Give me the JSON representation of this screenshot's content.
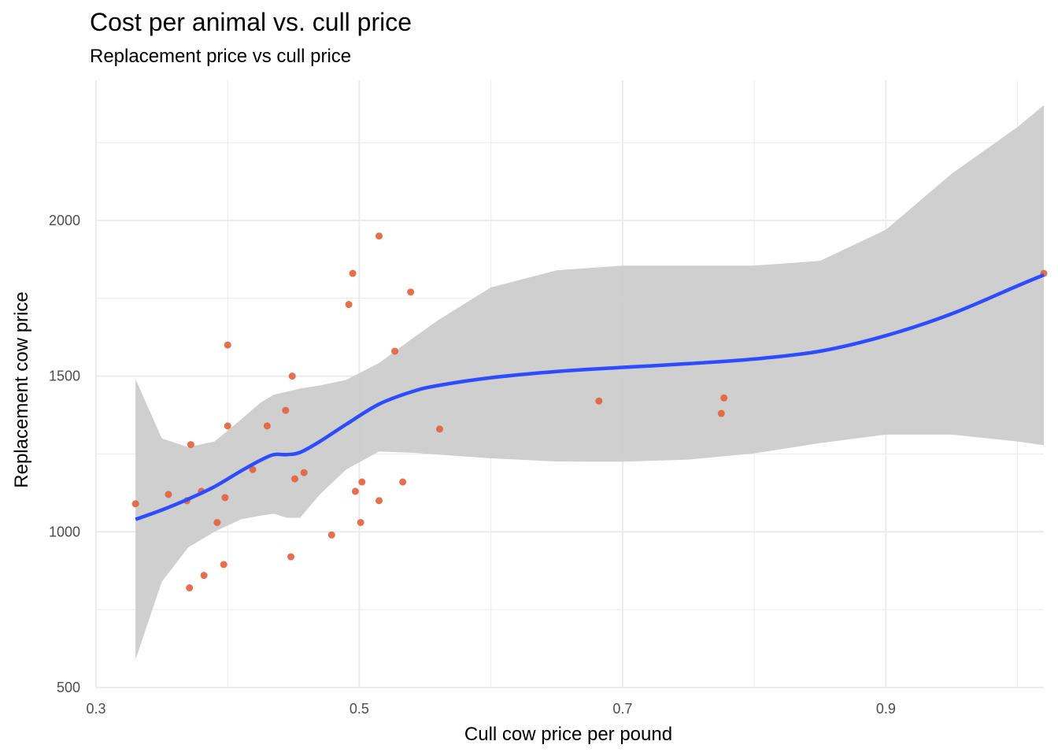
{
  "chart_data": {
    "type": "scatter",
    "title": "Cost per animal vs. cull price",
    "subtitle": "Replacement price vs cull price",
    "xlabel": "Cull cow price per pound",
    "ylabel": "Replacement cow price",
    "xlim": [
      0.3,
      1.02
    ],
    "ylim": [
      500,
      2450
    ],
    "x_ticks": [
      0.3,
      0.5,
      0.7,
      0.9
    ],
    "x_tick_labels": [
      "0.3",
      "0.5",
      "0.7",
      "0.9"
    ],
    "y_ticks": [
      500,
      1000,
      1500,
      2000
    ],
    "y_tick_labels": [
      "500",
      "1000",
      "1500",
      "2000"
    ],
    "grid": true,
    "legend": "none",
    "colors": {
      "points": "#e3633f",
      "smooth_line": "#2d4bff",
      "ribbon": "#cccccc",
      "grid": "#ebebeb"
    },
    "points": [
      {
        "x": 0.33,
        "y": 1090
      },
      {
        "x": 0.355,
        "y": 1120
      },
      {
        "x": 0.369,
        "y": 1100
      },
      {
        "x": 0.371,
        "y": 820
      },
      {
        "x": 0.372,
        "y": 1280
      },
      {
        "x": 0.38,
        "y": 1130
      },
      {
        "x": 0.382,
        "y": 860
      },
      {
        "x": 0.392,
        "y": 1030
      },
      {
        "x": 0.397,
        "y": 895
      },
      {
        "x": 0.398,
        "y": 1110
      },
      {
        "x": 0.4,
        "y": 1600
      },
      {
        "x": 0.4,
        "y": 1340
      },
      {
        "x": 0.419,
        "y": 1200
      },
      {
        "x": 0.43,
        "y": 1340
      },
      {
        "x": 0.444,
        "y": 1390
      },
      {
        "x": 0.448,
        "y": 920
      },
      {
        "x": 0.449,
        "y": 1500
      },
      {
        "x": 0.451,
        "y": 1170
      },
      {
        "x": 0.458,
        "y": 1190
      },
      {
        "x": 0.479,
        "y": 990
      },
      {
        "x": 0.492,
        "y": 1730
      },
      {
        "x": 0.495,
        "y": 1830
      },
      {
        "x": 0.497,
        "y": 1130
      },
      {
        "x": 0.501,
        "y": 1030
      },
      {
        "x": 0.502,
        "y": 1160
      },
      {
        "x": 0.515,
        "y": 1950
      },
      {
        "x": 0.515,
        "y": 1100
      },
      {
        "x": 0.527,
        "y": 1580
      },
      {
        "x": 0.533,
        "y": 1160
      },
      {
        "x": 0.539,
        "y": 1770
      },
      {
        "x": 0.561,
        "y": 1330
      },
      {
        "x": 0.682,
        "y": 1420
      },
      {
        "x": 0.775,
        "y": 1380
      },
      {
        "x": 0.777,
        "y": 1430
      },
      {
        "x": 1.02,
        "y": 1830
      }
    ],
    "smooth": {
      "x": [
        0.33,
        0.35,
        0.37,
        0.39,
        0.41,
        0.425,
        0.435,
        0.445,
        0.455,
        0.47,
        0.49,
        0.515,
        0.54,
        0.56,
        0.6,
        0.65,
        0.7,
        0.75,
        0.8,
        0.85,
        0.9,
        0.95,
        1.0,
        1.02
      ],
      "y": [
        1040,
        1070,
        1105,
        1145,
        1195,
        1230,
        1248,
        1248,
        1255,
        1290,
        1345,
        1410,
        1450,
        1470,
        1495,
        1515,
        1528,
        1540,
        1555,
        1580,
        1630,
        1700,
        1790,
        1825
      ],
      "lower": [
        590,
        840,
        950,
        1000,
        1040,
        1052,
        1058,
        1045,
        1045,
        1120,
        1200,
        1258,
        1254,
        1248,
        1236,
        1226,
        1225,
        1232,
        1252,
        1285,
        1312,
        1312,
        1290,
        1278
      ],
      "upper": [
        1490,
        1300,
        1272,
        1290,
        1360,
        1415,
        1440,
        1450,
        1460,
        1470,
        1488,
        1542,
        1620,
        1680,
        1785,
        1840,
        1855,
        1855,
        1855,
        1870,
        1970,
        2150,
        2300,
        2370
      ]
    }
  }
}
